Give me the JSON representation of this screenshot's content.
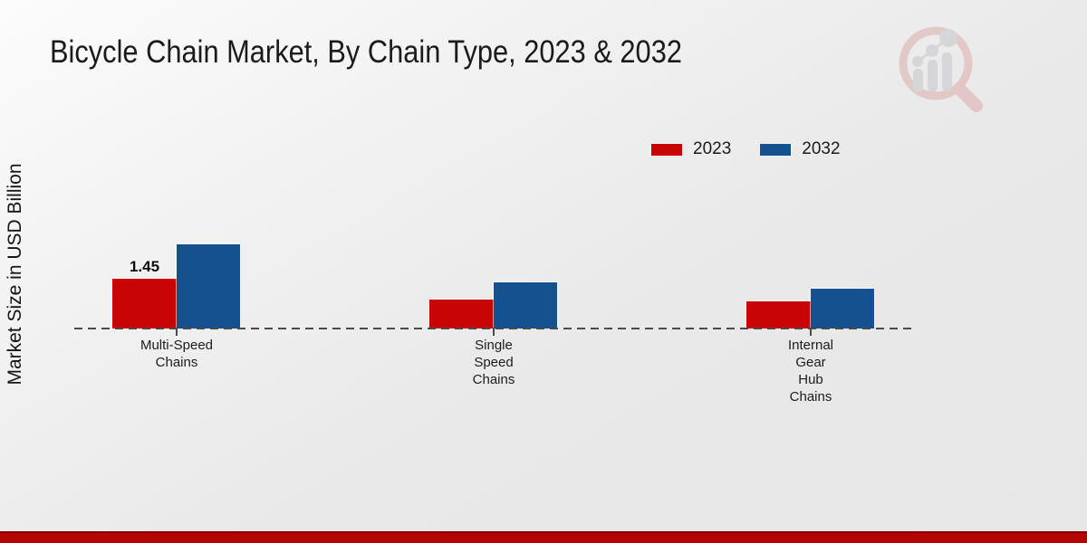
{
  "chart_data": {
    "type": "bar",
    "title": "Bicycle Chain Market, By Chain Type, 2023 & 2032",
    "ylabel": "Market Size in USD Billion",
    "xlabel": "",
    "categories": [
      "Multi-Speed Chains",
      "Single Speed Chains",
      "Internal Gear Hub Chains"
    ],
    "categories_display": [
      [
        "Multi-Speed",
        "Chains"
      ],
      [
        "Single",
        "Speed",
        "Chains"
      ],
      [
        "Internal",
        "Gear",
        "Hub",
        "Chains"
      ]
    ],
    "series": [
      {
        "name": "2023",
        "color": "#c80404",
        "values": [
          1.45,
          0.85,
          0.8
        ]
      },
      {
        "name": "2032",
        "color": "#15508f",
        "values": [
          2.45,
          1.35,
          1.15
        ]
      }
    ],
    "annotations": [
      {
        "text": "1.45",
        "series": "2023",
        "category": "Multi-Speed Chains"
      }
    ],
    "ylim": [
      0,
      2.6
    ],
    "grid": false,
    "baseline_style": "dashed",
    "legend_position": "top-right"
  },
  "watermark": {
    "name": "magnifier-bar-chart-logo"
  },
  "footer": {
    "band_color": "#b50404"
  }
}
